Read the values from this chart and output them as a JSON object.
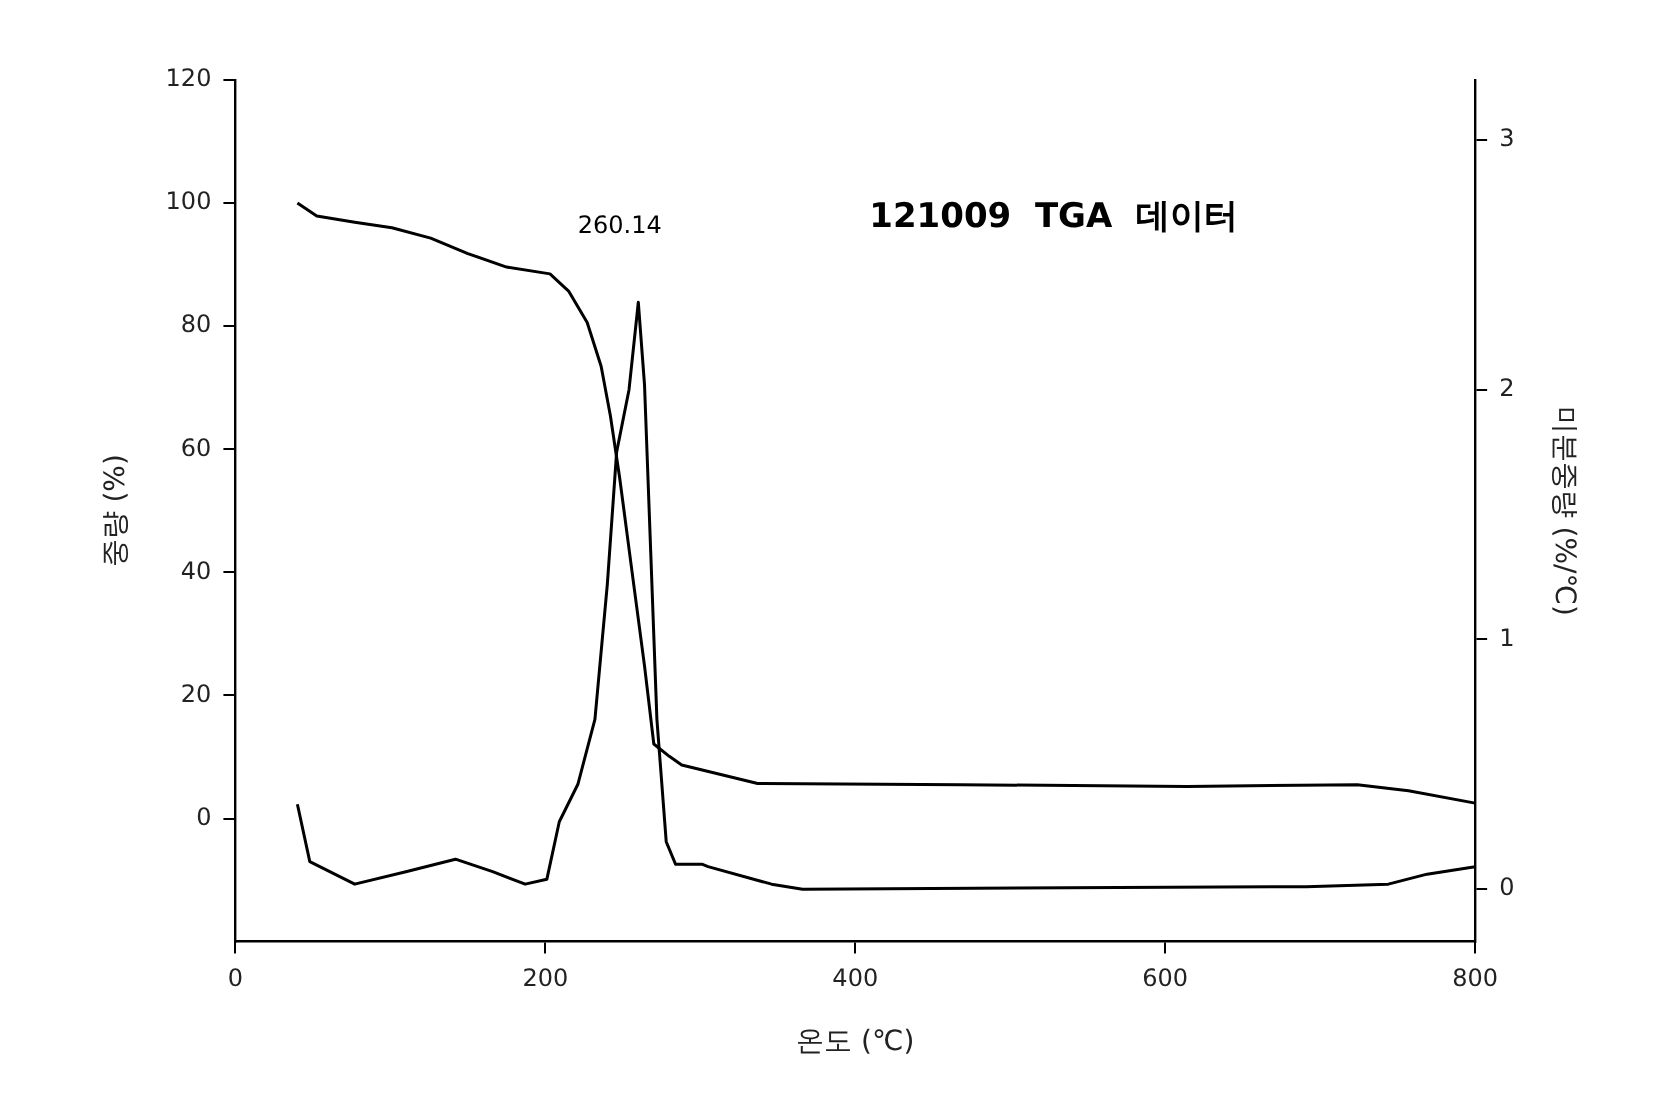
{
  "chart_data": {
    "type": "line",
    "title": "121009  TGA  데이터",
    "xlabel": "온도 (℃)",
    "ylabel": "중량 (%)",
    "y2label": "미분중량 (%/℃)",
    "xlim": [
      0,
      800
    ],
    "xticks": [
      0,
      200,
      400,
      600,
      800
    ],
    "ylim": [
      -20,
      120
    ],
    "yticks": [
      0,
      20,
      40,
      60,
      80,
      100,
      120
    ],
    "y2lim": [
      -0.21,
      3.24
    ],
    "y2ticks": [
      0,
      1,
      2,
      3
    ],
    "grid": false,
    "legend": false,
    "marker": "none",
    "line_style": "solid",
    "annotations": [
      "260.14"
    ],
    "series": [
      {
        "color": "#000000",
        "x": [
          40,
          52.5,
          77,
          101,
          126,
          150,
          175,
          203,
          215,
          227,
          236,
          242,
          248,
          256,
          264,
          270,
          280,
          288,
          337,
          468,
          614,
          724,
          757,
          800
        ],
        "values": [
          100,
          97.9,
          96.9,
          96,
          94.3,
          91.8,
          89.6,
          88.5,
          85.7,
          80.6,
          73.5,
          65.4,
          55.3,
          40,
          24.8,
          12.1,
          10.1,
          8.7,
          5.7,
          5.5,
          5.2,
          5.5,
          4.5,
          2.5
        ]
      },
      {
        "color": "#000000",
        "axis": "y2",
        "x": [
          40,
          48,
          77,
          110,
          142,
          166,
          187,
          201,
          209,
          221,
          232,
          240,
          246,
          254,
          260,
          264,
          268,
          272,
          278,
          284,
          301,
          305,
          346,
          366,
          691,
          744,
          769,
          800
        ],
        "values": [
          0.34,
          0.11,
          0.02,
          0.07,
          0.12,
          0.07,
          0.02,
          0.04,
          0.27,
          0.42,
          0.68,
          1.22,
          1.75,
          2.0,
          2.35,
          2.02,
          1.35,
          0.68,
          0.19,
          0.1,
          0.1,
          0.09,
          0.02,
          0,
          0.01,
          0.02,
          0.06,
          0.09
        ]
      }
    ]
  }
}
